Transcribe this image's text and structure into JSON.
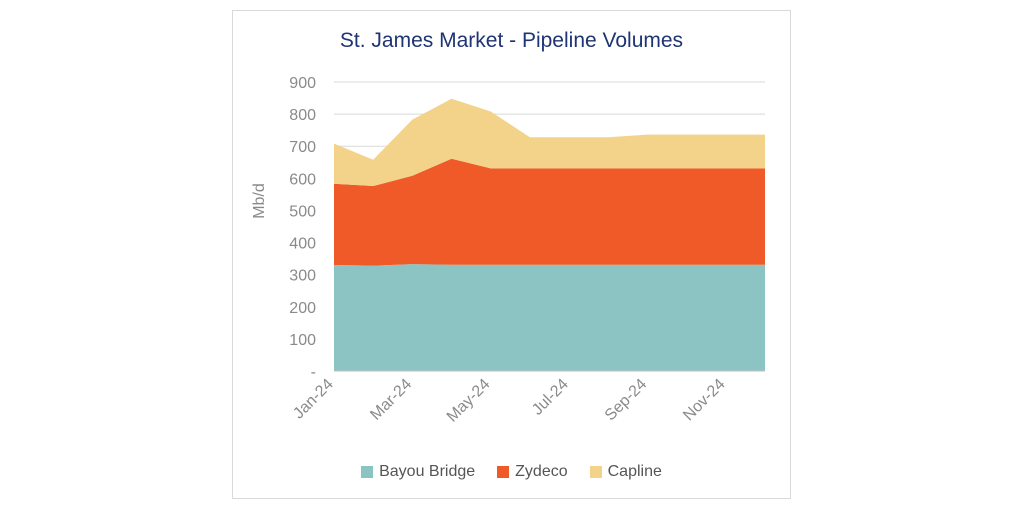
{
  "chart_data": {
    "type": "area",
    "stacked": true,
    "title": "St. James Market - Pipeline Volumes",
    "ylabel": "Mb/d",
    "ylim": [
      0,
      900
    ],
    "yticks": [
      0,
      100,
      200,
      300,
      400,
      500,
      600,
      700,
      800,
      900
    ],
    "ytick_labels": [
      "-",
      "100",
      "200",
      "300",
      "400",
      "500",
      "600",
      "700",
      "800",
      "900"
    ],
    "x": [
      "Jan-24",
      "Feb-24",
      "Mar-24",
      "Apr-24",
      "May-24",
      "Jun-24",
      "Jul-24",
      "Aug-24",
      "Sep-24",
      "Oct-24",
      "Nov-24",
      "Dec-24"
    ],
    "xtick_labels": [
      "Jan-24",
      "Mar-24",
      "May-24",
      "Jul-24",
      "Sep-24",
      "Nov-24"
    ],
    "grid": true,
    "legend_position": "bottom",
    "series": [
      {
        "name": "Bayou Bridge",
        "color": "#8cc4c4",
        "values": [
          330,
          328,
          333,
          331,
          331,
          331,
          331,
          331,
          331,
          331,
          331,
          331
        ]
      },
      {
        "name": "Zydeco",
        "color": "#f05a28",
        "values": [
          253,
          248,
          275,
          330,
          300,
          300,
          300,
          300,
          300,
          300,
          300,
          300
        ]
      },
      {
        "name": "Capline",
        "color": "#f2d389",
        "values": [
          125,
          82,
          175,
          187,
          177,
          97,
          97,
          97,
          105,
          105,
          105,
          105
        ]
      }
    ]
  }
}
